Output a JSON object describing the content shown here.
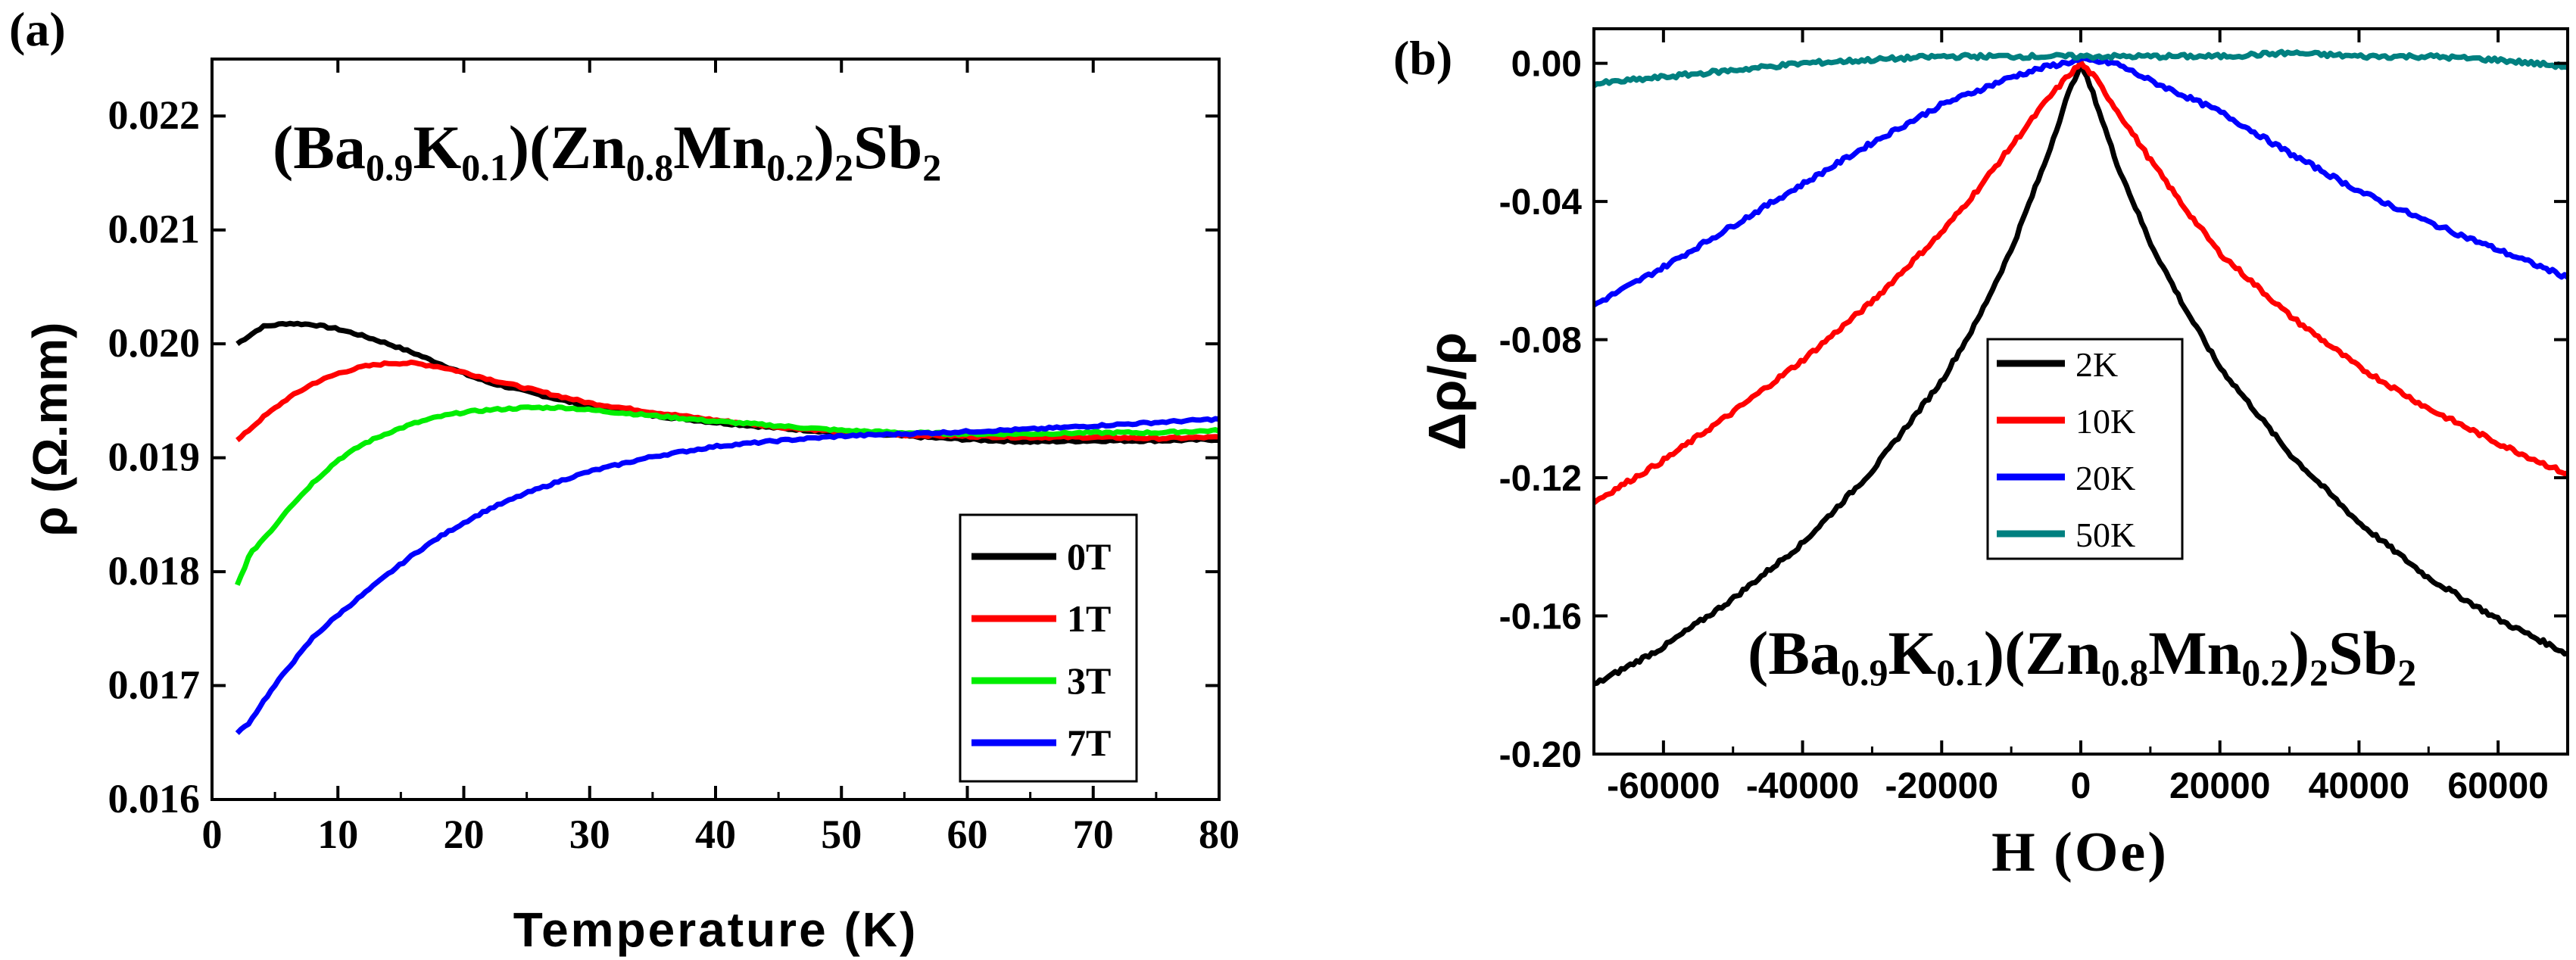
{
  "chart_data": [
    {
      "type": "line",
      "panel_label": "(a)",
      "annotation": "(Ba0.9K0.1)(Zn0.8Mn0.2)2Sb2",
      "xlabel": "Temperature (K)",
      "ylabel": "ρ (Ω.mm)",
      "xlim": [
        0,
        80
      ],
      "ylim": [
        0.016,
        0.0225
      ],
      "x_ticks": [
        0,
        10,
        20,
        30,
        40,
        50,
        60,
        70,
        80
      ],
      "x_tick_labels": [
        "0",
        "10",
        "20",
        "30",
        "40",
        "50",
        "60",
        "70",
        "80"
      ],
      "y_ticks": [
        0.016,
        0.017,
        0.018,
        0.019,
        0.02,
        0.021,
        0.022
      ],
      "y_tick_labels": [
        "0.016",
        "0.017",
        "0.018",
        "0.019",
        "0.020",
        "0.021",
        "0.022"
      ],
      "grid": false,
      "legend_position": "lower-right",
      "series": [
        {
          "name": "0T",
          "color": "#000000",
          "points": [
            [
              2,
              0.02
            ],
            [
              4,
              0.02015
            ],
            [
              6,
              0.02018
            ],
            [
              8,
              0.02017
            ],
            [
              10,
              0.02013
            ],
            [
              12,
              0.02007
            ],
            [
              14,
              0.02
            ],
            [
              16,
              0.01992
            ],
            [
              18,
              0.01983
            ],
            [
              20,
              0.01974
            ],
            [
              22,
              0.01966
            ],
            [
              25,
              0.01958
            ],
            [
              28,
              0.0195
            ],
            [
              30,
              0.01945
            ],
            [
              35,
              0.01937
            ],
            [
              40,
              0.01931
            ],
            [
              45,
              0.01926
            ],
            [
              50,
              0.01922
            ],
            [
              55,
              0.01919
            ],
            [
              60,
              0.01916
            ],
            [
              65,
              0.01914
            ],
            [
              70,
              0.01915
            ],
            [
              75,
              0.01915
            ],
            [
              80,
              0.01916
            ]
          ]
        },
        {
          "name": "1T",
          "color": "#ff0000",
          "points": [
            [
              2,
              0.01915
            ],
            [
              4,
              0.01935
            ],
            [
              6,
              0.01952
            ],
            [
              8,
              0.01965
            ],
            [
              10,
              0.01974
            ],
            [
              12,
              0.0198
            ],
            [
              14,
              0.01983
            ],
            [
              16,
              0.01983
            ],
            [
              18,
              0.0198
            ],
            [
              20,
              0.01975
            ],
            [
              22,
              0.01969
            ],
            [
              25,
              0.01961
            ],
            [
              28,
              0.01953
            ],
            [
              30,
              0.01948
            ],
            [
              35,
              0.0194
            ],
            [
              40,
              0.01933
            ],
            [
              45,
              0.01927
            ],
            [
              50,
              0.01923
            ],
            [
              55,
              0.0192
            ],
            [
              60,
              0.01919
            ],
            [
              65,
              0.01918
            ],
            [
              70,
              0.01918
            ],
            [
              75,
              0.01917
            ],
            [
              80,
              0.01918
            ]
          ]
        },
        {
          "name": "3T",
          "color": "#00ee00",
          "points": [
            [
              2,
              0.01788
            ],
            [
              3,
              0.01815
            ],
            [
              4,
              0.01828
            ],
            [
              5,
              0.0184
            ],
            [
              6,
              0.01855
            ],
            [
              7,
              0.01866
            ],
            [
              8,
              0.01878
            ],
            [
              10,
              0.01898
            ],
            [
              12,
              0.01912
            ],
            [
              14,
              0.01922
            ],
            [
              16,
              0.0193
            ],
            [
              18,
              0.01936
            ],
            [
              20,
              0.0194
            ],
            [
              22,
              0.01942
            ],
            [
              25,
              0.01944
            ],
            [
              28,
              0.01944
            ],
            [
              30,
              0.01942
            ],
            [
              35,
              0.01937
            ],
            [
              40,
              0.01932
            ],
            [
              45,
              0.01928
            ],
            [
              50,
              0.01924
            ],
            [
              55,
              0.01922
            ],
            [
              60,
              0.01921
            ],
            [
              65,
              0.01921
            ],
            [
              70,
              0.01922
            ],
            [
              75,
              0.01922
            ],
            [
              80,
              0.01924
            ]
          ]
        },
        {
          "name": "7T",
          "color": "#0000ff",
          "points": [
            [
              2,
              0.01658
            ],
            [
              3,
              0.01668
            ],
            [
              4,
              0.01685
            ],
            [
              5,
              0.017
            ],
            [
              6,
              0.01715
            ],
            [
              7,
              0.01728
            ],
            [
              8,
              0.01742
            ],
            [
              10,
              0.01762
            ],
            [
              12,
              0.0178
            ],
            [
              14,
              0.01798
            ],
            [
              16,
              0.01815
            ],
            [
              18,
              0.0183
            ],
            [
              20,
              0.01843
            ],
            [
              22,
              0.01855
            ],
            [
              25,
              0.01869
            ],
            [
              28,
              0.01881
            ],
            [
              30,
              0.01888
            ],
            [
              35,
              0.01901
            ],
            [
              40,
              0.0191
            ],
            [
              45,
              0.01915
            ],
            [
              50,
              0.01919
            ],
            [
              55,
              0.01921
            ],
            [
              60,
              0.01923
            ],
            [
              65,
              0.01925
            ],
            [
              70,
              0.01928
            ],
            [
              75,
              0.01931
            ],
            [
              80,
              0.01934
            ]
          ]
        }
      ]
    },
    {
      "type": "line",
      "panel_label": "(b)",
      "annotation": "(Ba0.9K0.1)(Zn0.8Mn0.2)2Sb2",
      "xlabel": "H (Oe)",
      "ylabel": "Δρ/ρ",
      "xlim": [
        -70000,
        70000
      ],
      "ylim": [
        -0.2,
        0.01
      ],
      "x_ticks": [
        -60000,
        -40000,
        -20000,
        0,
        20000,
        40000,
        60000
      ],
      "x_tick_labels": [
        "-60000",
        "-40000",
        "-20000",
        "0",
        "20000",
        "40000",
        "60000"
      ],
      "y_ticks": [
        0.0,
        -0.04,
        -0.08,
        -0.12,
        -0.16,
        -0.2
      ],
      "y_tick_labels": [
        "0.00",
        "-0.04",
        "-0.08",
        "-0.12",
        "-0.16",
        "-0.20"
      ],
      "grid": false,
      "legend_position": "center",
      "series": [
        {
          "name": "2K",
          "color": "#000000",
          "points": [
            [
              -70000,
              -0.18
            ],
            [
              -60000,
              -0.169
            ],
            [
              -50000,
              -0.155
            ],
            [
              -40000,
              -0.139
            ],
            [
              -30000,
              -0.118
            ],
            [
              -20000,
              -0.092
            ],
            [
              -15000,
              -0.075
            ],
            [
              -10000,
              -0.054
            ],
            [
              -5000,
              -0.028
            ],
            [
              -2000,
              -0.01
            ],
            [
              0,
              0.0
            ],
            [
              2000,
              -0.01
            ],
            [
              5000,
              -0.028
            ],
            [
              10000,
              -0.052
            ],
            [
              15000,
              -0.071
            ],
            [
              20000,
              -0.088
            ],
            [
              30000,
              -0.113
            ],
            [
              40000,
              -0.133
            ],
            [
              50000,
              -0.149
            ],
            [
              60000,
              -0.161
            ],
            [
              70000,
              -0.171
            ]
          ]
        },
        {
          "name": "10K",
          "color": "#ff0000",
          "points": [
            [
              -70000,
              -0.127
            ],
            [
              -60000,
              -0.115
            ],
            [
              -50000,
              -0.101
            ],
            [
              -40000,
              -0.086
            ],
            [
              -30000,
              -0.069
            ],
            [
              -20000,
              -0.049
            ],
            [
              -15000,
              -0.037
            ],
            [
              -10000,
              -0.024
            ],
            [
              -5000,
              -0.011
            ],
            [
              -2000,
              -0.004
            ],
            [
              0,
              0.0
            ],
            [
              2000,
              -0.004
            ],
            [
              5000,
              -0.013
            ],
            [
              10000,
              -0.028
            ],
            [
              15000,
              -0.042
            ],
            [
              20000,
              -0.055
            ],
            [
              30000,
              -0.073
            ],
            [
              40000,
              -0.088
            ],
            [
              50000,
              -0.1
            ],
            [
              60000,
              -0.11
            ],
            [
              70000,
              -0.119
            ]
          ]
        },
        {
          "name": "20K",
          "color": "#0000ff",
          "points": [
            [
              -70000,
              -0.07
            ],
            [
              -60000,
              -0.059
            ],
            [
              -50000,
              -0.047
            ],
            [
              -40000,
              -0.035
            ],
            [
              -30000,
              -0.023
            ],
            [
              -20000,
              -0.012
            ],
            [
              -10000,
              -0.004
            ],
            [
              -5000,
              -0.001
            ],
            [
              0,
              0.001
            ],
            [
              5000,
              0.0
            ],
            [
              10000,
              -0.005
            ],
            [
              20000,
              -0.014
            ],
            [
              30000,
              -0.026
            ],
            [
              40000,
              -0.037
            ],
            [
              50000,
              -0.046
            ],
            [
              60000,
              -0.054
            ],
            [
              70000,
              -0.062
            ]
          ]
        },
        {
          "name": "50K",
          "color": "#008080",
          "points": [
            [
              -70000,
              -0.006
            ],
            [
              -60000,
              -0.004
            ],
            [
              -50000,
              -0.002
            ],
            [
              -40000,
              0.0
            ],
            [
              -30000,
              0.001
            ],
            [
              -20000,
              0.002
            ],
            [
              -10000,
              0.002
            ],
            [
              0,
              0.002
            ],
            [
              10000,
              0.002
            ],
            [
              20000,
              0.002
            ],
            [
              30000,
              0.003
            ],
            [
              40000,
              0.002
            ],
            [
              50000,
              0.002
            ],
            [
              60000,
              0.001
            ],
            [
              70000,
              -0.001
            ]
          ]
        }
      ]
    }
  ]
}
